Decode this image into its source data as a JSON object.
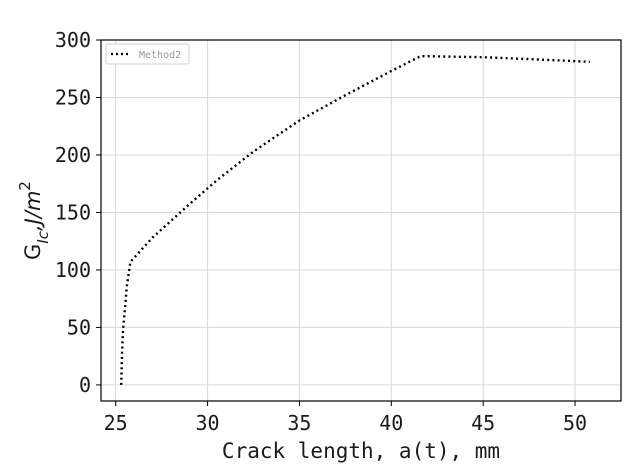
{
  "chart_data": {
    "type": "line",
    "xlabel": "Crack length, a(t), mm",
    "ylabel": {
      "main": "G",
      "sub": "Ic",
      "mid": ",J/m",
      "sup": "2"
    },
    "xlim": [
      24.2,
      52.5
    ],
    "ylim": [
      -14,
      300
    ],
    "x_ticks": [
      25,
      30,
      35,
      40,
      45,
      50
    ],
    "y_ticks": [
      0,
      50,
      100,
      150,
      200,
      250,
      300
    ],
    "grid": true,
    "legend_position": "top-left",
    "series": [
      {
        "name": "Method2",
        "style": "dotted",
        "color": "#000000",
        "x": [
          25.3,
          25.35,
          25.4,
          25.5,
          25.6,
          25.8,
          27.0,
          29.0,
          30.5,
          32.5,
          35.0,
          37.5,
          40.0,
          41.6,
          45.0,
          48.0,
          50.8
        ],
        "y": [
          0,
          30,
          48,
          65,
          85,
          107,
          128,
          157,
          178,
          203,
          230,
          252,
          273,
          286,
          285,
          283,
          281
        ]
      }
    ]
  }
}
